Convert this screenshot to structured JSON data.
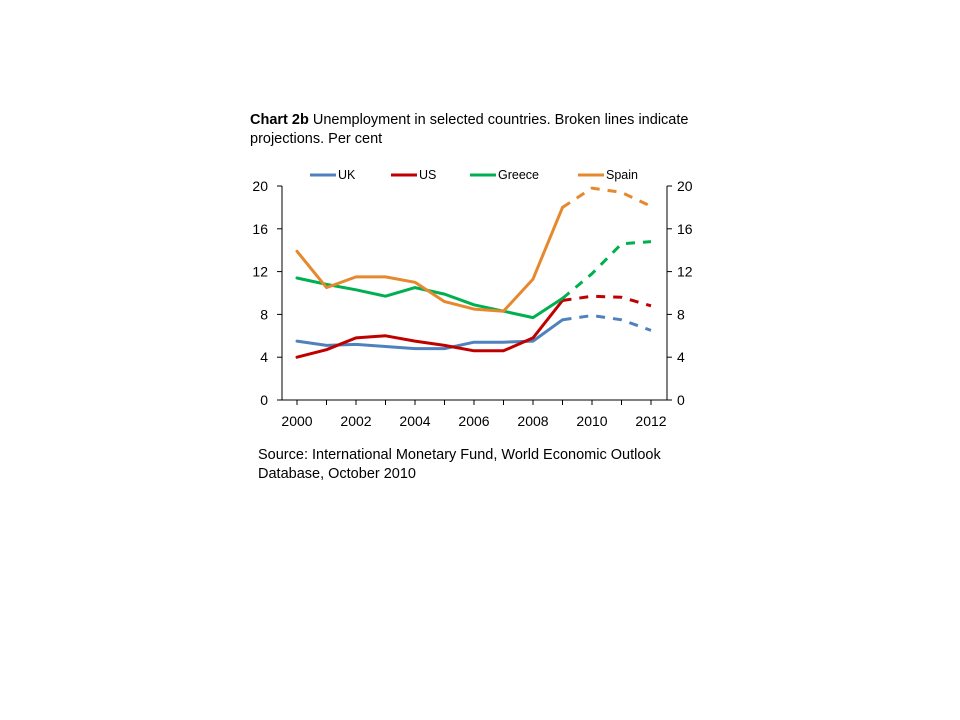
{
  "title": {
    "bold": "Chart 2b",
    "text": "Unemployment in selected countries. Broken lines indicate projections. Per cent"
  },
  "source": "Source:  International Monetary Fund, World Economic Outlook Database, October 2010",
  "chart_data": {
    "type": "line",
    "xlabel": "",
    "ylabel": "",
    "xlim": [
      2000,
      2012
    ],
    "ylim": [
      0,
      20
    ],
    "x_ticks": [
      "2000",
      "2002",
      "2004",
      "2006",
      "2008",
      "2010",
      "2012"
    ],
    "y_ticks": [
      "0",
      "4",
      "8",
      "12",
      "16",
      "20"
    ],
    "y_ticks_right": [
      "0",
      "4",
      "8",
      "12",
      "16",
      "20"
    ],
    "projection_start": 2009,
    "legend_position": "top",
    "series": [
      {
        "name": "UK",
        "color": "#4f81bd",
        "x": [
          2000,
          2001,
          2002,
          2003,
          2004,
          2005,
          2006,
          2007,
          2008,
          2009,
          2010,
          2011,
          2012
        ],
        "values": [
          5.5,
          5.1,
          5.2,
          5.0,
          4.8,
          4.8,
          5.4,
          5.4,
          5.5,
          7.5,
          7.9,
          7.5,
          6.5
        ]
      },
      {
        "name": "US",
        "color": "#c00000",
        "x": [
          2000,
          2001,
          2002,
          2003,
          2004,
          2005,
          2006,
          2007,
          2008,
          2009,
          2010,
          2011,
          2012
        ],
        "values": [
          4.0,
          4.7,
          5.8,
          6.0,
          5.5,
          5.1,
          4.6,
          4.6,
          5.8,
          9.3,
          9.7,
          9.6,
          8.8
        ]
      },
      {
        "name": "Greece",
        "color": "#00b050",
        "x": [
          2000,
          2001,
          2002,
          2003,
          2004,
          2005,
          2006,
          2007,
          2008,
          2009,
          2010,
          2011,
          2012
        ],
        "values": [
          11.4,
          10.8,
          10.3,
          9.7,
          10.5,
          9.9,
          8.9,
          8.3,
          7.7,
          9.5,
          11.8,
          14.6,
          14.8
        ]
      },
      {
        "name": "Spain",
        "color": "#e6892e",
        "x": [
          2000,
          2001,
          2002,
          2003,
          2004,
          2005,
          2006,
          2007,
          2008,
          2009,
          2010,
          2011,
          2012
        ],
        "values": [
          13.9,
          10.5,
          11.5,
          11.5,
          11.0,
          9.2,
          8.5,
          8.3,
          11.3,
          18.0,
          19.8,
          19.4,
          18.1
        ]
      }
    ]
  }
}
